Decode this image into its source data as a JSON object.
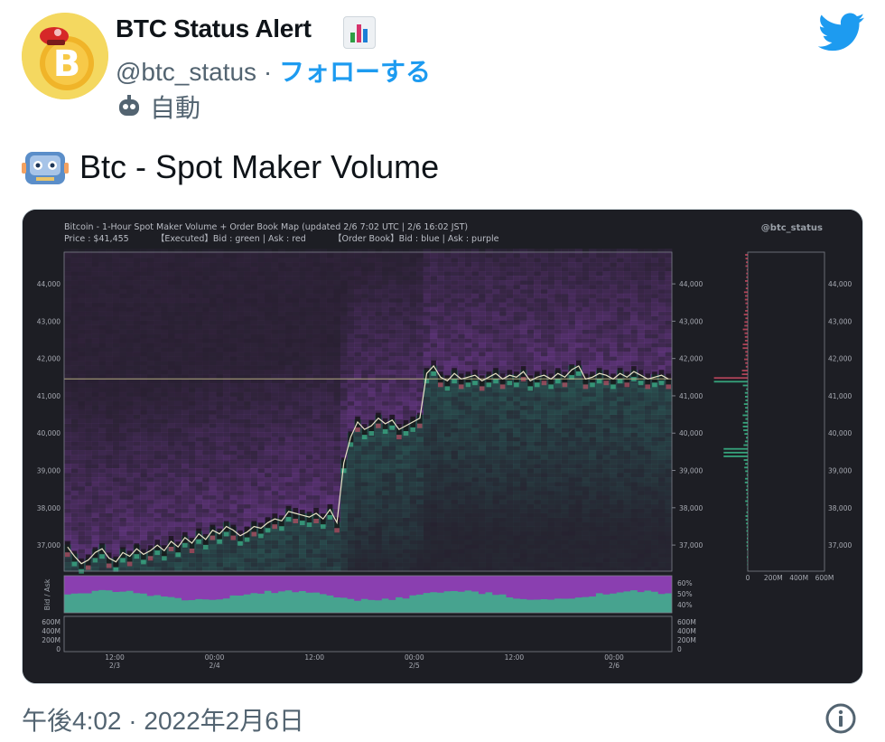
{
  "user": {
    "display_name": "BTC Status Alert",
    "handle": "@btc_status",
    "separator": "·",
    "follow_label": "フォローする",
    "automated_label": "自動"
  },
  "tweet": {
    "text": "Btc - Spot Maker Volume",
    "timestamp": "午後4:02 · 2022年2月6日"
  },
  "media": {
    "title": "Bitcoin - 1-Hour Spot Maker Volume + Order Book Map    (updated 2/6 7:02 UTC  |  2/6 16:02 JST)",
    "subtitle": "Price : $41,455          【Executed】Bid : green | Ask : red          【Order Book】Bid : blue | Ask : purple",
    "watermark": "@btc_status",
    "bidask_axis_label": "Bid / Ask",
    "colors": {
      "background": "#1d1e24",
      "bid_exec": "#3fd19a",
      "ask_exec": "#e0506a",
      "book_bid": "#2d6e66",
      "book_ask": "#7b3fa0",
      "price_line": "#c8c08a"
    },
    "chart_data": [
      {
        "type": "heatmap",
        "name": "main",
        "title": "Bitcoin - 1-Hour Spot Maker Volume + Order Book Map",
        "y_ticks": [
          "44,000",
          "43,000",
          "42,000",
          "41,000",
          "40,000",
          "39,000",
          "38,000",
          "37,000"
        ],
        "y_tick_values": [
          44000,
          43000,
          42000,
          41000,
          40000,
          39000,
          38000,
          37000
        ],
        "ylim": [
          36300,
          44850
        ],
        "x_ticks": [
          "12:00",
          "00:00",
          "12:00",
          "00:00",
          "12:00",
          "00:00"
        ],
        "x_tick_dates": [
          "2/3",
          "2/4",
          "",
          "2/5",
          "",
          "2/6"
        ],
        "current_price": 41455,
        "price_series": [
          36950,
          36700,
          36500,
          36600,
          36800,
          36900,
          36650,
          36550,
          36800,
          36700,
          36900,
          36750,
          36850,
          37000,
          36850,
          37100,
          36950,
          37200,
          37050,
          37300,
          37150,
          37400,
          37300,
          37500,
          37400,
          37250,
          37350,
          37500,
          37450,
          37600,
          37700,
          37650,
          37900,
          37850,
          37800,
          37750,
          37850,
          37700,
          37950,
          37600,
          39200,
          39900,
          40300,
          40100,
          40200,
          40400,
          40250,
          40350,
          40100,
          40200,
          40300,
          40400,
          41600,
          41800,
          41500,
          41400,
          41600,
          41450,
          41500,
          41550,
          41400,
          41500,
          41600,
          41450,
          41550,
          41500,
          41650,
          41400,
          41500,
          41550,
          41450,
          41600,
          41500,
          41700,
          41800,
          41450,
          41500,
          41600,
          41550,
          41450,
          41600,
          41500,
          41650,
          41550,
          41450,
          41500,
          41550,
          41450
        ]
      },
      {
        "type": "bar",
        "name": "order-book-depth",
        "x_ticks": [
          "0",
          "200M",
          "400M",
          "600M"
        ],
        "xlim": [
          0,
          700
        ]
      },
      {
        "type": "area",
        "name": "bid-ask-ratio",
        "ylabel": "Bid / Ask",
        "y_ticks": [
          "60%",
          "50%",
          "40%"
        ],
        "ylim": [
          35,
          65
        ]
      },
      {
        "type": "bar",
        "name": "volume",
        "y_ticks": [
          "600M",
          "400M",
          "200M",
          "0"
        ],
        "ylim": [
          0,
          650
        ]
      }
    ]
  }
}
